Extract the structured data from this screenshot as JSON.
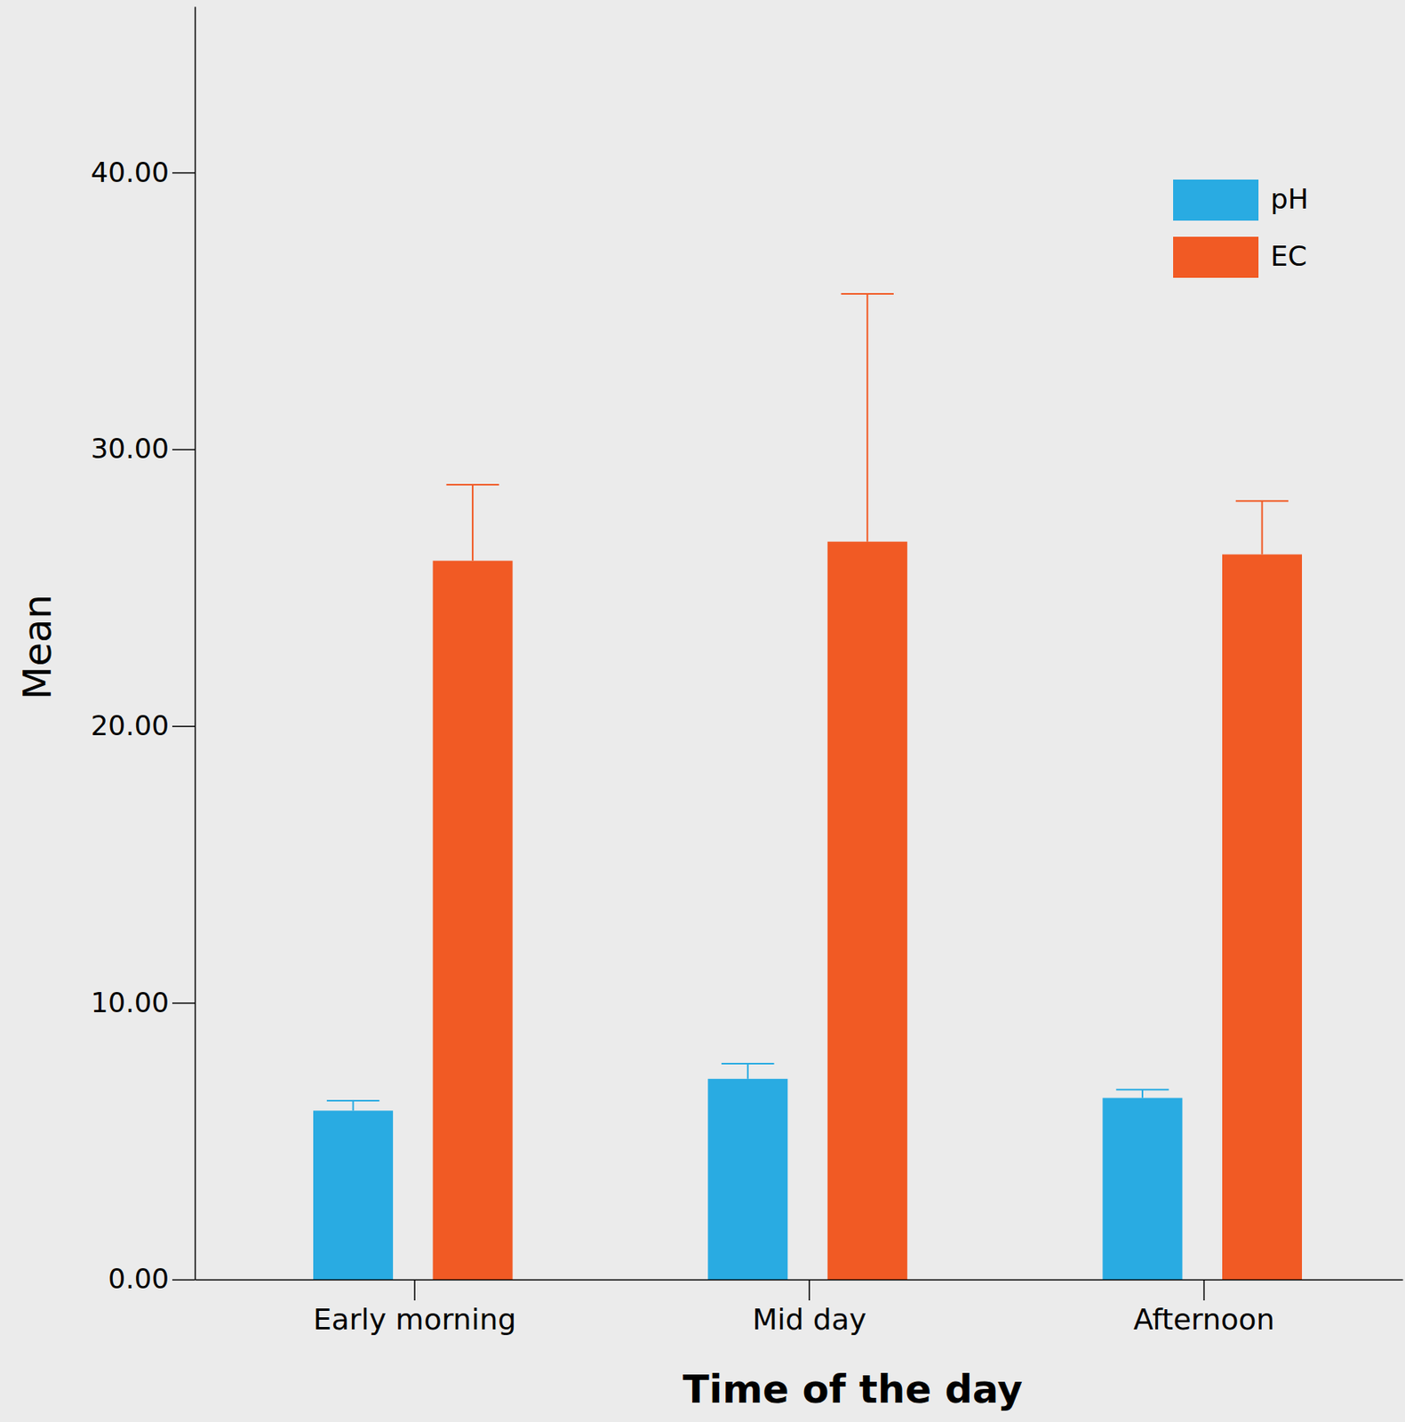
{
  "chart_data": {
    "type": "bar",
    "x_label": "Time of the day",
    "y_label": "Mean",
    "categories": [
      "Early morning",
      "Mid day",
      "Afternoon"
    ],
    "series": [
      {
        "name": "pH",
        "color": "#29abe2",
        "values": [
          6.1,
          7.25,
          6.56
        ],
        "errors": [
          0.36,
          0.55,
          0.3
        ]
      },
      {
        "name": "EC",
        "color": "#f15a24",
        "values": [
          25.97,
          26.66,
          26.2
        ],
        "errors": [
          2.75,
          8.95,
          1.93
        ]
      }
    ],
    "ylim": [
      0,
      46
    ],
    "yticks": [
      {
        "value": 0,
        "label": "0.00"
      },
      {
        "value": 10,
        "label": "10.00"
      },
      {
        "value": 20,
        "label": "20.00"
      },
      {
        "value": 30,
        "label": "30.00"
      },
      {
        "value": 40,
        "label": "40.00"
      }
    ],
    "legend": "top-right"
  }
}
